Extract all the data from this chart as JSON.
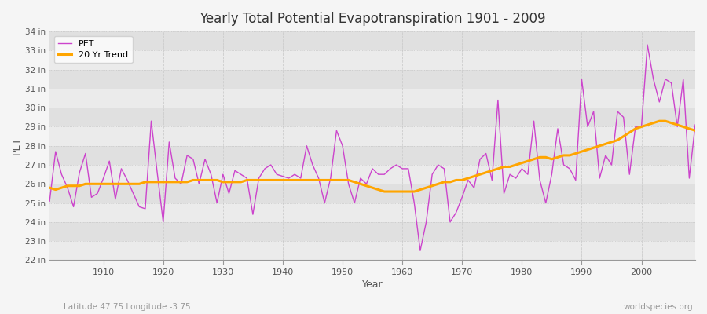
{
  "title": "Yearly Total Potential Evapotranspiration 1901 - 2009",
  "xlabel": "Year",
  "ylabel": "PET",
  "pet_label": "PET",
  "trend_label": "20 Yr Trend",
  "pet_color": "#CC44CC",
  "trend_color": "#FFA500",
  "bg_color": "#F0F0F0",
  "plot_bg_color": "#EBEBEB",
  "band_color_light": "#EBEBEB",
  "band_color_dark": "#E0E0E0",
  "subtitle_left": "Latitude 47.75 Longitude -3.75",
  "subtitle_right": "worldspecies.org",
  "ylim": [
    22,
    34
  ],
  "years": [
    1901,
    1902,
    1903,
    1904,
    1905,
    1906,
    1907,
    1908,
    1909,
    1910,
    1911,
    1912,
    1913,
    1914,
    1915,
    1916,
    1917,
    1918,
    1919,
    1920,
    1921,
    1922,
    1923,
    1924,
    1925,
    1926,
    1927,
    1928,
    1929,
    1930,
    1931,
    1932,
    1933,
    1934,
    1935,
    1936,
    1937,
    1938,
    1939,
    1940,
    1941,
    1942,
    1943,
    1944,
    1945,
    1946,
    1947,
    1948,
    1949,
    1950,
    1951,
    1952,
    1953,
    1954,
    1955,
    1956,
    1957,
    1958,
    1959,
    1960,
    1961,
    1962,
    1963,
    1964,
    1965,
    1966,
    1967,
    1968,
    1969,
    1970,
    1971,
    1972,
    1973,
    1974,
    1975,
    1976,
    1977,
    1978,
    1979,
    1980,
    1981,
    1982,
    1983,
    1984,
    1985,
    1986,
    1987,
    1988,
    1989,
    1990,
    1991,
    1992,
    1993,
    1994,
    1995,
    1996,
    1997,
    1998,
    1999,
    2000,
    2001,
    2002,
    2003,
    2004,
    2005,
    2006,
    2007,
    2008,
    2009
  ],
  "pet_values": [
    25.1,
    27.7,
    26.5,
    25.8,
    24.8,
    26.6,
    27.6,
    25.3,
    25.5,
    26.3,
    27.2,
    25.2,
    26.8,
    26.2,
    25.5,
    24.8,
    24.7,
    29.3,
    26.6,
    24.0,
    28.2,
    26.3,
    26.0,
    27.5,
    27.3,
    26.0,
    27.3,
    26.5,
    25.0,
    26.5,
    25.5,
    26.7,
    26.5,
    26.3,
    24.4,
    26.3,
    26.8,
    27.0,
    26.5,
    26.4,
    26.3,
    26.5,
    26.3,
    28.0,
    27.0,
    26.3,
    25.0,
    26.3,
    28.8,
    28.0,
    26.0,
    25.0,
    26.3,
    26.0,
    26.8,
    26.5,
    26.5,
    26.8,
    27.0,
    26.8,
    26.8,
    25.0,
    22.5,
    24.0,
    26.5,
    27.0,
    26.8,
    24.0,
    24.5,
    25.3,
    26.2,
    25.8,
    27.3,
    27.6,
    26.2,
    30.4,
    25.5,
    26.5,
    26.3,
    26.8,
    26.5,
    29.3,
    26.2,
    25.0,
    26.5,
    28.9,
    27.0,
    26.8,
    26.2,
    31.5,
    29.0,
    29.8,
    26.3,
    27.5,
    27.0,
    29.8,
    29.5,
    26.5,
    29.0,
    29.0,
    33.3,
    31.5,
    30.3,
    31.5,
    31.3,
    29.0,
    31.5,
    26.3,
    29.1
  ],
  "trend_values": [
    25.8,
    25.7,
    25.8,
    25.9,
    25.9,
    25.9,
    26.0,
    26.0,
    26.0,
    26.0,
    26.0,
    26.0,
    26.0,
    26.0,
    26.0,
    26.0,
    26.1,
    26.1,
    26.1,
    26.1,
    26.1,
    26.1,
    26.1,
    26.1,
    26.2,
    26.2,
    26.2,
    26.2,
    26.2,
    26.1,
    26.1,
    26.1,
    26.1,
    26.2,
    26.2,
    26.2,
    26.2,
    26.2,
    26.2,
    26.2,
    26.2,
    26.2,
    26.2,
    26.2,
    26.2,
    26.2,
    26.2,
    26.2,
    26.2,
    26.2,
    26.2,
    26.1,
    26.0,
    25.9,
    25.8,
    25.7,
    25.6,
    25.6,
    25.6,
    25.6,
    25.6,
    25.6,
    25.7,
    25.8,
    25.9,
    26.0,
    26.1,
    26.1,
    26.2,
    26.2,
    26.3,
    26.4,
    26.5,
    26.6,
    26.7,
    26.8,
    26.9,
    26.9,
    27.0,
    27.1,
    27.2,
    27.3,
    27.4,
    27.4,
    27.3,
    27.4,
    27.5,
    27.5,
    27.6,
    27.7,
    27.8,
    27.9,
    28.0,
    28.1,
    28.2,
    28.3,
    28.5,
    28.7,
    28.9,
    29.0,
    29.1,
    29.2,
    29.3,
    29.3,
    29.2,
    29.1,
    29.0,
    28.9,
    28.8
  ]
}
